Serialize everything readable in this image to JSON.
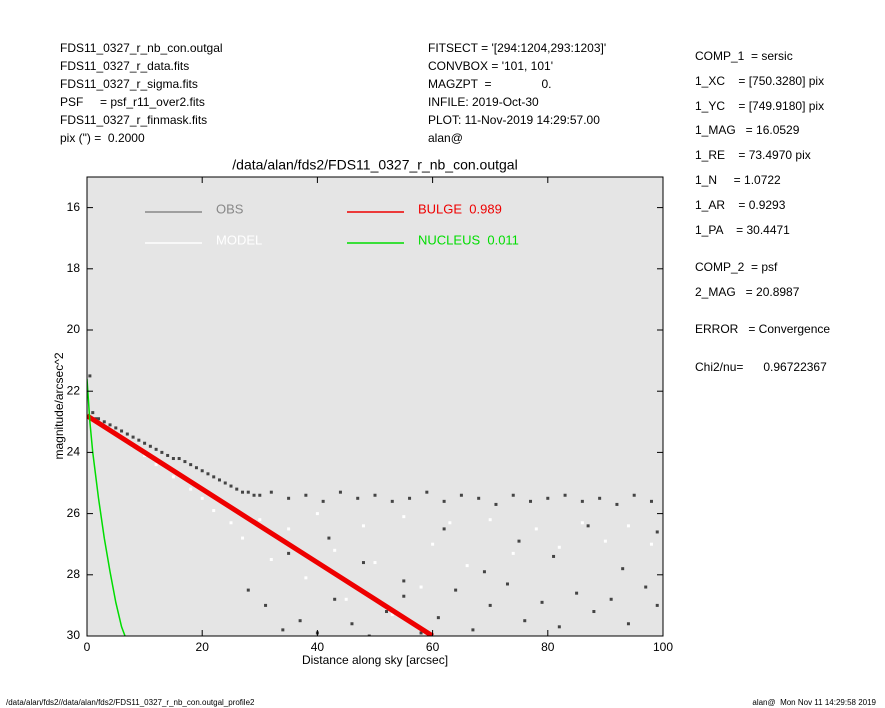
{
  "header": {
    "left": [
      "FDS11_0327_r_nb_con.outgal",
      "FDS11_0327_r_data.fits",
      "FDS11_0327_r_sigma.fits",
      "PSF     = psf_r11_over2.fits",
      "FDS11_0327_r_finmask.fits",
      "pix (\") =  0.2000"
    ],
    "middle": [
      "FITSECT = '[294:1204,293:1203]'",
      "CONVBOX = '101, 101'",
      "MAGZPT  =               0.",
      "INFILE: 2019-Oct-30",
      "PLOT: 11-Nov-2019 14:29:57.00",
      "alan@"
    ],
    "right": [
      "COMP_1  = sersic",
      "1_XC    = [750.3280] pix",
      "1_YC    = [749.9180] pix",
      "1_MAG   = 16.0529",
      "1_RE    = 73.4970 pix",
      "1_N     = 1.0722",
      "1_AR    = 0.9293",
      "1_PA    = 30.4471",
      "COMP_2  = psf",
      "2_MAG   = 20.8987",
      "ERROR   = Convergence",
      "Chi2/nu=      0.96722367"
    ]
  },
  "footer": {
    "left": "/data/alan/fds2//data/alan/fds2/FDS11_0327_r_nb_con.outgal_profile2",
    "right": "alan@  Mon Nov 11 14:29:58 2019"
  },
  "chart_data": {
    "type": "scatter",
    "title": "/data/alan/fds2/FDS11_0327_r_nb_con.outgal",
    "xlabel": "Distance along sky [arcsec]",
    "ylabel": "magnitude/arcsec^2",
    "xlim": [
      0,
      100
    ],
    "ylim": [
      30,
      15
    ],
    "xticks": [
      0,
      20,
      40,
      60,
      80,
      100
    ],
    "yticks": [
      16,
      18,
      20,
      22,
      24,
      26,
      28,
      30
    ],
    "background": "#e5e5e5",
    "series": [
      {
        "name": "OBS",
        "kind": "points",
        "color": "#444444",
        "legend_color": "#888888",
        "x": [
          0.5,
          1,
          1.5,
          2,
          3,
          4,
          5,
          6,
          7,
          8,
          9,
          10,
          11,
          12,
          13,
          14,
          15,
          16,
          17,
          18,
          19,
          20,
          21,
          22,
          23,
          24,
          25,
          26,
          27,
          28,
          29,
          30,
          32,
          35,
          38,
          41,
          44,
          47,
          50,
          53,
          56,
          59,
          62,
          65,
          68,
          71,
          74,
          77,
          80,
          83,
          86,
          89,
          92,
          95,
          98,
          28,
          31,
          34,
          37,
          40,
          43,
          46,
          49,
          52,
          55,
          58,
          61,
          64,
          67,
          70,
          73,
          76,
          79,
          82,
          85,
          88,
          91,
          94,
          97,
          99,
          35,
          42,
          48,
          55,
          62,
          69,
          75,
          81,
          87,
          93,
          99
        ],
        "values": [
          21.5,
          22.7,
          22.9,
          22.9,
          23.0,
          23.1,
          23.2,
          23.3,
          23.4,
          23.5,
          23.6,
          23.7,
          23.8,
          23.9,
          24.0,
          24.1,
          24.2,
          24.2,
          24.3,
          24.4,
          24.5,
          24.6,
          24.7,
          24.8,
          24.9,
          25.0,
          25.1,
          25.2,
          25.3,
          25.3,
          25.4,
          25.4,
          25.3,
          25.5,
          25.4,
          25.6,
          25.3,
          25.5,
          25.4,
          25.6,
          25.5,
          25.3,
          25.6,
          25.4,
          25.5,
          25.7,
          25.4,
          25.6,
          25.5,
          25.4,
          25.6,
          25.5,
          25.7,
          25.4,
          25.6,
          28.5,
          29.0,
          29.8,
          29.5,
          29.9,
          28.8,
          29.6,
          30.0,
          29.2,
          28.7,
          29.9,
          29.4,
          28.5,
          29.8,
          29.0,
          28.3,
          29.5,
          28.9,
          29.7,
          28.6,
          29.2,
          28.8,
          29.6,
          28.4,
          29.0,
          27.3,
          26.8,
          27.6,
          28.2,
          26.5,
          27.9,
          26.9,
          27.4,
          26.4,
          27.8,
          26.6
        ]
      },
      {
        "name": "MODEL",
        "kind": "points",
        "color": "#ffffff",
        "legend_color": "#ffffff",
        "x": [
          5,
          8,
          10,
          12,
          15,
          18,
          20,
          22,
          25,
          27,
          30,
          32,
          35,
          38,
          40,
          43,
          45,
          48,
          50,
          53,
          55,
          58,
          60,
          63,
          66,
          70,
          74,
          78,
          82,
          86,
          90,
          94,
          98
        ],
        "values": [
          23.4,
          23.8,
          24.1,
          24.4,
          24.8,
          25.2,
          25.5,
          25.9,
          26.3,
          26.8,
          26.2,
          27.5,
          26.5,
          28.1,
          26.0,
          27.2,
          28.8,
          26.4,
          27.6,
          29.3,
          26.1,
          28.4,
          27.0,
          26.3,
          27.7,
          26.2,
          27.3,
          26.5,
          27.1,
          26.3,
          26.9,
          26.4,
          27.0
        ]
      },
      {
        "name": "BULGE  0.989",
        "kind": "line",
        "color": "#ee0000",
        "legend_color": "#ee0000",
        "x": [
          0,
          10,
          20,
          30,
          40,
          50,
          60
        ],
        "values": [
          22.8,
          24.0,
          25.2,
          26.4,
          27.6,
          28.8,
          30.0
        ]
      },
      {
        "name": "NUCLEUS  0.011",
        "kind": "line",
        "color": "#00dd00",
        "legend_color": "#00dd00",
        "x": [
          0,
          0.5,
          1,
          2,
          3,
          4,
          5,
          6,
          6.6
        ],
        "values": [
          21.6,
          23.0,
          24.0,
          25.5,
          26.8,
          27.9,
          28.9,
          29.7,
          30.0
        ]
      }
    ]
  }
}
